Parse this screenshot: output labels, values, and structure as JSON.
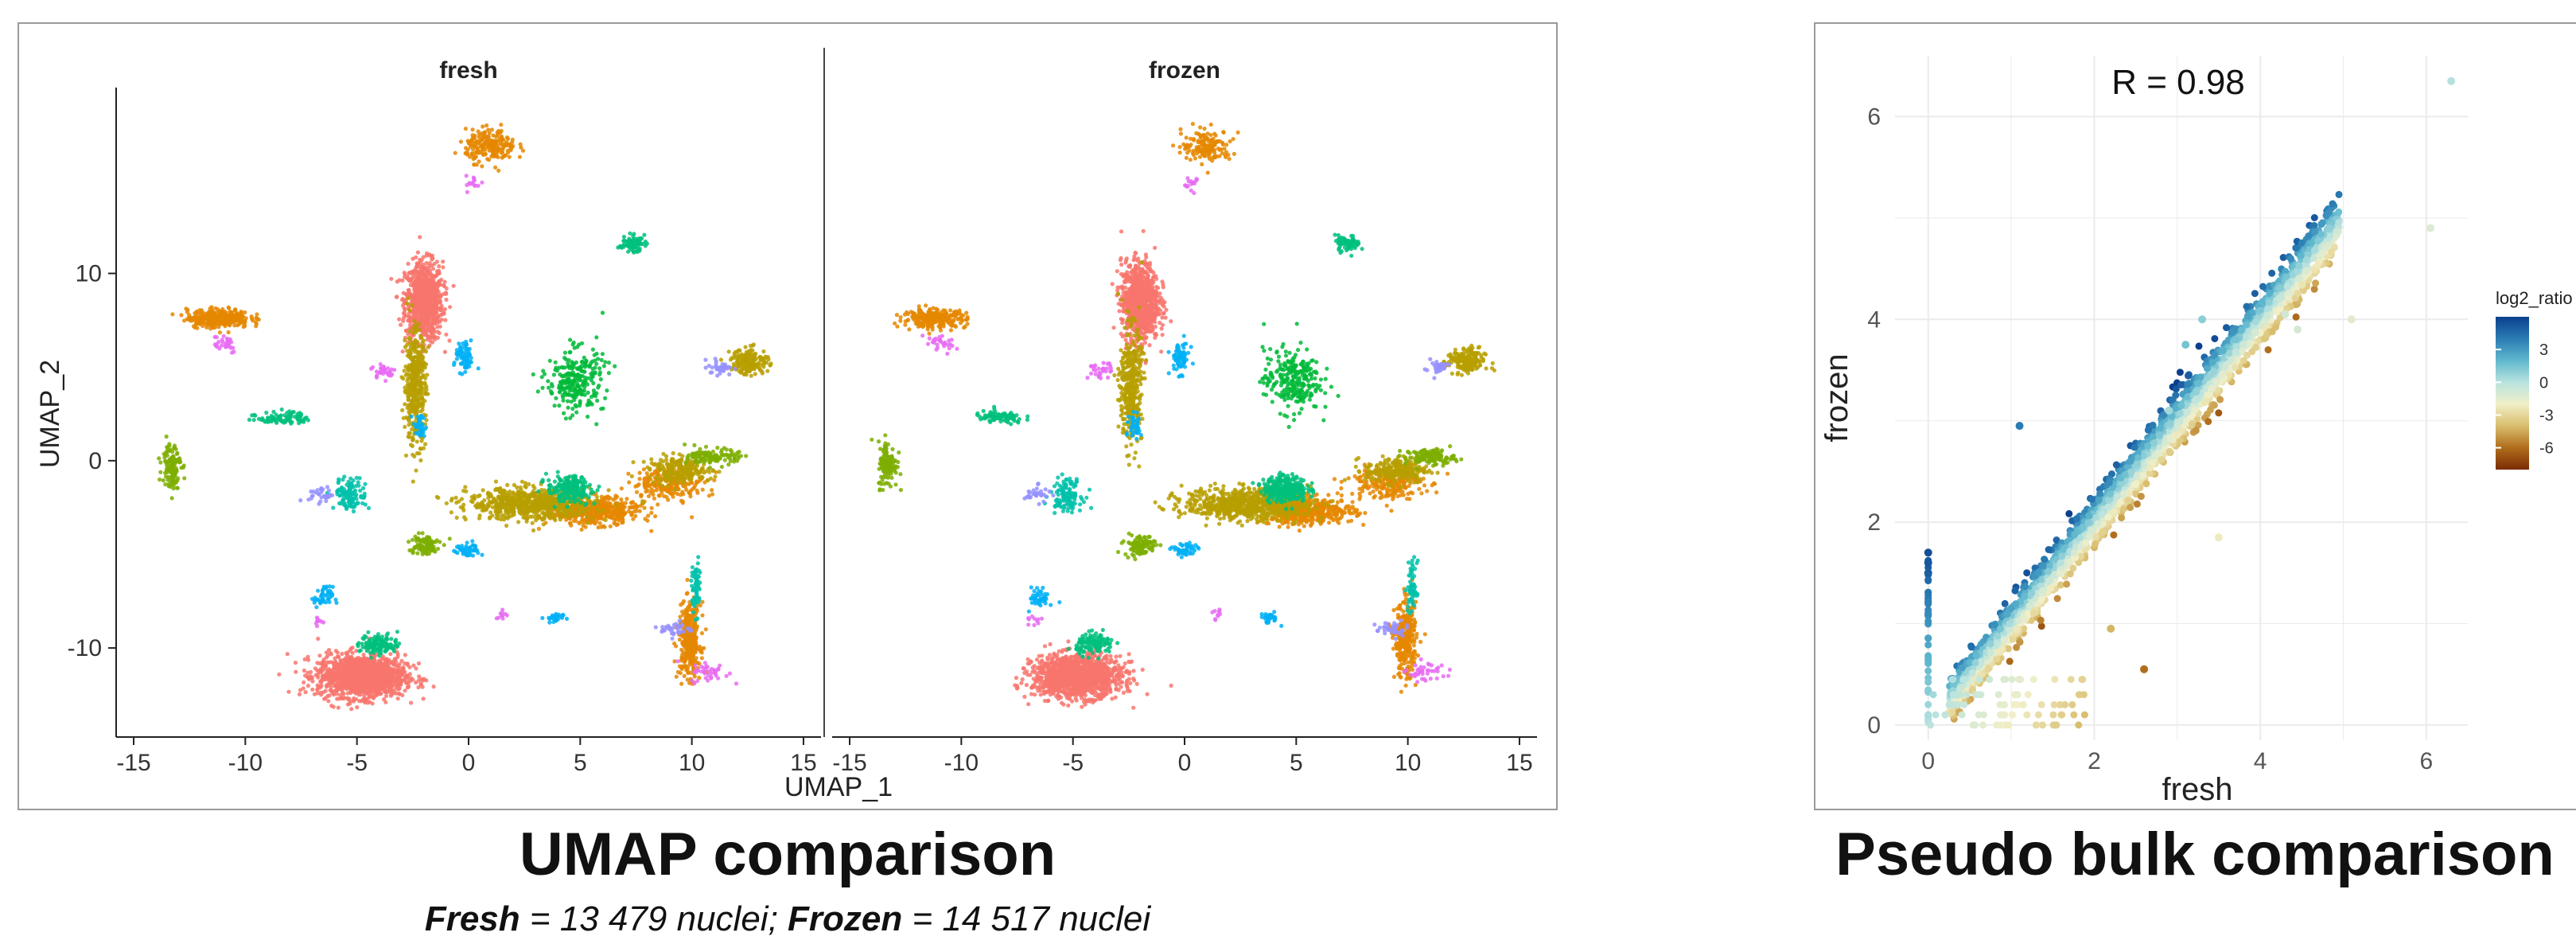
{
  "captions": {
    "umap": "UMAP comparison",
    "bulk": "Pseudo bulk comparison",
    "counts": {
      "fresh_label": "Fresh",
      "fresh_text": " = 13 479 nuclei; ",
      "frozen_label": "Frozen",
      "frozen_text": " = 14 517 nuclei"
    }
  },
  "chart_data": [
    {
      "type": "scatter",
      "title": "",
      "xlabel": "UMAP_1",
      "ylabel": "UMAP_2",
      "facets": [
        "fresh",
        "frozen"
      ],
      "xlim": [
        -15.5,
        15.5
      ],
      "ylim": [
        -14.5,
        19.5
      ],
      "x_ticks": [
        -15,
        -10,
        -5,
        0,
        5,
        10,
        15
      ],
      "y_ticks": [
        -10,
        0,
        10
      ],
      "grid": false,
      "legend": "none",
      "series": [
        {
          "color": "#F8766D",
          "clusters": [
            {
              "x": -2.0,
              "y": 8.5,
              "sx": 0.6,
              "sy": 1.5,
              "n": 900,
              "f": [
                1.0,
                1.0
              ]
            },
            {
              "x": -4.8,
              "y": -11.5,
              "sx": 1.4,
              "sy": 0.8,
              "n": 1400,
              "f": [
                1.0,
                1.0
              ]
            }
          ]
        },
        {
          "color": "#E58700",
          "clusters": [
            {
              "x": -11.2,
              "y": 7.6,
              "sx": 1.0,
              "sy": 0.35,
              "n": 320,
              "f": [
                1.0,
                0.8
              ]
            },
            {
              "x": 1.0,
              "y": 16.8,
              "sx": 0.8,
              "sy": 0.6,
              "n": 220,
              "f": [
                1.0,
                0.7
              ]
            },
            {
              "x": 9.9,
              "y": -9.6,
              "sx": 0.35,
              "sy": 1.4,
              "n": 320,
              "f": [
                1.0,
                1.0
              ]
            },
            {
              "x": 5.5,
              "y": -2.7,
              "sx": 1.5,
              "sy": 0.5,
              "n": 500,
              "f": [
                1.0,
                0.9
              ]
            },
            {
              "x": 9.0,
              "y": -1.2,
              "sx": 1.2,
              "sy": 0.6,
              "n": 200,
              "f": [
                1.0,
                1.0
              ]
            }
          ]
        },
        {
          "color": "#B79F00",
          "clusters": [
            {
              "x": -2.4,
              "y": 4.0,
              "sx": 0.35,
              "sy": 2.2,
              "n": 400,
              "f": [
                1.0,
                1.0
              ]
            },
            {
              "x": 2.8,
              "y": -2.3,
              "sx": 2.0,
              "sy": 0.6,
              "n": 700,
              "f": [
                1.0,
                1.0
              ]
            },
            {
              "x": 12.6,
              "y": 5.3,
              "sx": 0.6,
              "sy": 0.5,
              "n": 160,
              "f": [
                1.0,
                1.0
              ]
            },
            {
              "x": 9.5,
              "y": -0.5,
              "sx": 1.0,
              "sy": 0.5,
              "n": 220,
              "f": [
                1.0,
                1.0
              ]
            }
          ]
        },
        {
          "color": "#7CAE00",
          "clusters": [
            {
              "x": -13.3,
              "y": -0.2,
              "sx": 0.3,
              "sy": 0.9,
              "n": 120,
              "f": [
                1.0,
                1.0
              ]
            },
            {
              "x": -2.0,
              "y": -4.5,
              "sx": 0.5,
              "sy": 0.4,
              "n": 100,
              "f": [
                1.0,
                1.0
              ]
            },
            {
              "x": 11.0,
              "y": 0.2,
              "sx": 0.8,
              "sy": 0.3,
              "n": 120,
              "f": [
                1.0,
                1.0
              ]
            }
          ]
        },
        {
          "color": "#00BA38",
          "clusters": [
            {
              "x": 4.8,
              "y": 4.3,
              "sx": 0.9,
              "sy": 1.2,
              "n": 260,
              "f": [
                1.0,
                1.0
              ]
            }
          ]
        },
        {
          "color": "#00BF7D",
          "clusters": [
            {
              "x": 4.5,
              "y": -1.5,
              "sx": 0.7,
              "sy": 0.5,
              "n": 200,
              "f": [
                1.0,
                1.5
              ]
            },
            {
              "x": 7.3,
              "y": 11.6,
              "sx": 0.4,
              "sy": 0.3,
              "n": 70,
              "f": [
                1.0,
                1.0
              ]
            },
            {
              "x": -4.0,
              "y": -9.8,
              "sx": 0.6,
              "sy": 0.4,
              "n": 120,
              "f": [
                1.0,
                1.0
              ]
            },
            {
              "x": -8.3,
              "y": 2.3,
              "sx": 0.8,
              "sy": 0.25,
              "n": 90,
              "f": [
                1.0,
                1.0
              ]
            }
          ]
        },
        {
          "color": "#00C1AA",
          "clusters": [
            {
              "x": -5.3,
              "y": -1.8,
              "sx": 0.5,
              "sy": 0.6,
              "n": 120,
              "f": [
                1.0,
                1.0
              ]
            },
            {
              "x": 10.2,
              "y": -6.8,
              "sx": 0.15,
              "sy": 1.0,
              "n": 60,
              "f": [
                1.0,
                1.0
              ]
            }
          ]
        },
        {
          "color": "#00B0F6",
          "clusters": [
            {
              "x": -0.2,
              "y": 5.5,
              "sx": 0.3,
              "sy": 0.6,
              "n": 70,
              "f": [
                1.0,
                1.0
              ]
            },
            {
              "x": 0.0,
              "y": -4.8,
              "sx": 0.4,
              "sy": 0.3,
              "n": 50,
              "f": [
                1.0,
                1.0
              ]
            },
            {
              "x": 3.8,
              "y": -8.4,
              "sx": 0.3,
              "sy": 0.2,
              "n": 30,
              "f": [
                1.0,
                1.0
              ]
            },
            {
              "x": -6.5,
              "y": -7.3,
              "sx": 0.3,
              "sy": 0.4,
              "n": 45,
              "f": [
                1.0,
                1.0
              ]
            },
            {
              "x": -2.2,
              "y": 1.8,
              "sx": 0.2,
              "sy": 0.5,
              "n": 35,
              "f": [
                1.0,
                1.0
              ]
            }
          ]
        },
        {
          "color": "#9590FF",
          "clusters": [
            {
              "x": 11.3,
              "y": 5.0,
              "sx": 0.4,
              "sy": 0.3,
              "n": 35,
              "f": [
                1.0,
                1.0
              ]
            },
            {
              "x": -6.6,
              "y": -1.8,
              "sx": 0.4,
              "sy": 0.3,
              "n": 30,
              "f": [
                1.0,
                1.0
              ]
            },
            {
              "x": 9.3,
              "y": -9.0,
              "sx": 0.5,
              "sy": 0.3,
              "n": 35,
              "f": [
                1.0,
                1.0
              ]
            }
          ]
        },
        {
          "color": "#E76BF3",
          "clusters": [
            {
              "x": -11.0,
              "y": 6.3,
              "sx": 0.5,
              "sy": 0.4,
              "n": 30,
              "f": [
                1.0,
                1.0
              ]
            },
            {
              "x": -3.8,
              "y": 4.8,
              "sx": 0.4,
              "sy": 0.3,
              "n": 30,
              "f": [
                1.0,
                1.0
              ]
            },
            {
              "x": 0.3,
              "y": 14.8,
              "sx": 0.3,
              "sy": 0.3,
              "n": 15,
              "f": [
                1.0,
                1.0
              ]
            },
            {
              "x": 10.8,
              "y": -11.3,
              "sx": 0.6,
              "sy": 0.4,
              "n": 40,
              "f": [
                1.0,
                1.0
              ]
            },
            {
              "x": 1.5,
              "y": -8.2,
              "sx": 0.2,
              "sy": 0.2,
              "n": 10,
              "f": [
                1.0,
                1.0
              ]
            },
            {
              "x": -6.7,
              "y": -8.6,
              "sx": 0.2,
              "sy": 0.2,
              "n": 10,
              "f": [
                1.0,
                1.0
              ]
            }
          ]
        }
      ]
    },
    {
      "type": "scatter",
      "title": "R = 0.98",
      "xlabel": "fresh",
      "ylabel": "frozen",
      "xlim": [
        -0.4,
        6.5
      ],
      "ylim": [
        -0.15,
        6.6
      ],
      "x_ticks": [
        0,
        2,
        4,
        6
      ],
      "y_ticks": [
        0,
        2,
        4,
        6
      ],
      "grid": true,
      "legend": "right",
      "legend_title": "log2_ratio",
      "legend_ticks": [
        3,
        0,
        -3,
        -6
      ],
      "color_scale": [
        "#7b2c04",
        "#b06d1c",
        "#d9be6e",
        "#f1efc8",
        "#b9e3df",
        "#5fb8ce",
        "#2a7cb3",
        "#0b3f8e"
      ],
      "color_domain": [
        -8,
        6
      ],
      "points": [
        {
          "x": 6.3,
          "y": 6.35,
          "c": 0.1
        },
        {
          "x": 6.05,
          "y": 4.9,
          "c": -1.2
        },
        {
          "x": 5.1,
          "y": 4.0,
          "c": -1.4
        },
        {
          "x": 4.3,
          "y": 4.05,
          "c": -0.8
        },
        {
          "x": 4.45,
          "y": 3.9,
          "c": -1.0
        },
        {
          "x": 2.6,
          "y": 0.55,
          "c": -6.0
        },
        {
          "x": 2.2,
          "y": 0.95,
          "c": -4.2
        },
        {
          "x": 1.1,
          "y": 2.95,
          "c": 4.0
        },
        {
          "x": 3.3,
          "y": 4.0,
          "c": 1.0
        },
        {
          "x": 3.1,
          "y": 3.75,
          "c": 1.5
        },
        {
          "x": 2.9,
          "y": 3.1,
          "c": 0.5
        },
        {
          "x": 3.5,
          "y": 1.85,
          "c": -2.2
        },
        {
          "x": 0.0,
          "y": 1.7,
          "c": 5.5
        },
        {
          "x": 0.0,
          "y": 1.6,
          "c": 5.2
        },
        {
          "x": 0.0,
          "y": 1.5,
          "c": 5.0
        }
      ]
    }
  ]
}
